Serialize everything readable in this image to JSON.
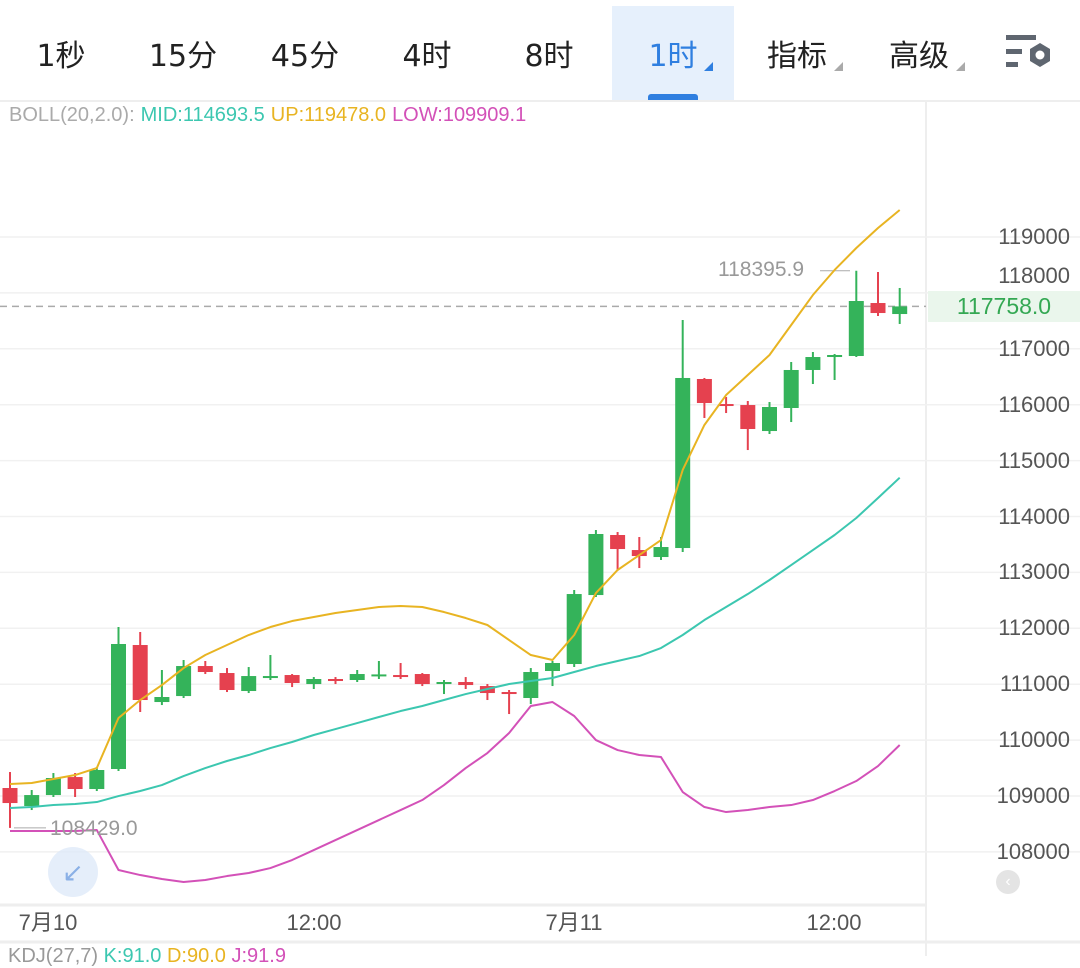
{
  "tabs": [
    {
      "label": "1秒"
    },
    {
      "label": "15分"
    },
    {
      "label": "45分"
    },
    {
      "label": "4时"
    },
    {
      "label": "8时"
    },
    {
      "label": "1时",
      "selected": true,
      "dropdown": true
    },
    {
      "label": "指标",
      "dropdown": true
    },
    {
      "label": "高级",
      "dropdown": true
    }
  ],
  "settings_icon": "chart-settings-icon",
  "legend": {
    "boll": "BOLL(20,2.0):",
    "mid": "MID:114693.5",
    "up": "UP:119478.0",
    "low": "LOW:109909.1"
  },
  "kdj_legend": {
    "name": "KDJ(27,7)",
    "k": "K:91.0",
    "d": "D:90.0",
    "j": "J:91.9"
  },
  "colors": {
    "up_candle": "#34b35a",
    "down_candle": "#e5414f",
    "mid": "#3cc7b0",
    "up": "#e8b422",
    "low": "#d351b8",
    "accent": "#2f7fe0"
  },
  "current_price": "117758.0",
  "high_marker": "118395.9",
  "low_marker": "108429.0",
  "chart_data": {
    "type": "candlestick",
    "y_axis_ticks": [
      "119000",
      "118000",
      "117000",
      "116000",
      "115000",
      "114000",
      "113000",
      "112000",
      "111000",
      "110000",
      "109000",
      "108000"
    ],
    "x_axis_ticks": [
      "7月10",
      "12:00",
      "7月11",
      "12:00"
    ],
    "ylim": [
      107000,
      120000
    ],
    "candles_ohlc": [
      [
        109143,
        109429,
        108429,
        108874
      ],
      [
        108821,
        109107,
        108749,
        109017
      ],
      [
        109017,
        109411,
        108982,
        109322
      ],
      [
        109339,
        109411,
        108982,
        109125
      ],
      [
        109125,
        109518,
        109089,
        109465
      ],
      [
        109483,
        112023,
        109447,
        111719
      ],
      [
        111701,
        111933,
        110502,
        110717
      ],
      [
        110681,
        111254,
        110627,
        110771
      ],
      [
        110788,
        111433,
        110753,
        111325
      ],
      [
        111325,
        111415,
        111182,
        111218
      ],
      [
        111200,
        111289,
        110860,
        110896
      ],
      [
        110878,
        111307,
        110842,
        111146
      ],
      [
        111128,
        111522,
        111075,
        111146
      ],
      [
        111164,
        111182,
        110949,
        111021
      ],
      [
        111003,
        111128,
        110914,
        111093
      ],
      [
        111093,
        111128,
        111003,
        111057
      ],
      [
        111075,
        111254,
        111039,
        111182
      ],
      [
        111164,
        111415,
        111093,
        111175
      ],
      [
        111164,
        111379,
        111093,
        111146
      ],
      [
        111182,
        111200,
        110967,
        111003
      ],
      [
        111003,
        111075,
        110824,
        111039
      ],
      [
        111039,
        111128,
        110914,
        110985
      ],
      [
        110967,
        111003,
        110717,
        110842
      ],
      [
        110860,
        110896,
        110466,
        110824
      ],
      [
        110753,
        111289,
        110645,
        111218
      ],
      [
        111236,
        111415,
        110967,
        111379
      ],
      [
        111361,
        112685,
        111307,
        112613
      ],
      [
        112595,
        113758,
        112560,
        113687
      ],
      [
        113669,
        113722,
        113043,
        113418
      ],
      [
        113400,
        113633,
        113078,
        113293
      ],
      [
        113275,
        113633,
        113222,
        113454
      ],
      [
        113436,
        117515,
        113365,
        116478
      ],
      [
        116460,
        116478,
        115762,
        116030
      ],
      [
        116012,
        116138,
        115851,
        115994
      ],
      [
        115994,
        116066,
        115189,
        115565
      ],
      [
        115529,
        116048,
        115476,
        115959
      ],
      [
        115941,
        116764,
        115690,
        116621
      ],
      [
        116621,
        116943,
        116370,
        116853
      ],
      [
        116853,
        116907,
        116442,
        116889
      ],
      [
        116871,
        118396,
        116853,
        117855
      ],
      [
        117819,
        118374,
        117587,
        117640
      ],
      [
        117622,
        118088,
        117444,
        117758
      ]
    ],
    "series": [
      {
        "name": "MID",
        "values": [
          108785,
          108803,
          108838,
          108856,
          108892,
          108999,
          109089,
          109196,
          109357,
          109500,
          109626,
          109733,
          109858,
          109966,
          110091,
          110198,
          110305,
          110413,
          110520,
          110610,
          110717,
          110824,
          110914,
          111003,
          111057,
          111111,
          111218,
          111325,
          111415,
          111504,
          111647,
          111880,
          112148,
          112381,
          112613,
          112864,
          113132,
          113400,
          113669,
          113973,
          114331,
          114694
        ]
      },
      {
        "name": "UP",
        "values": [
          109214,
          109232,
          109304,
          109375,
          109500,
          110395,
          110717,
          110985,
          111289,
          111522,
          111701,
          111880,
          112023,
          112130,
          112202,
          112273,
          112327,
          112381,
          112399,
          112381,
          112291,
          112184,
          112059,
          111790,
          111522,
          111433,
          111880,
          112631,
          113043,
          113311,
          113579,
          114832,
          115637,
          116173,
          116531,
          116889,
          117426,
          117962,
          118410,
          118803,
          119161,
          119483
        ]
      },
      {
        "name": "LOW",
        "values": [
          108373,
          108373,
          108373,
          108373,
          108391,
          107676,
          107586,
          107515,
          107461,
          107497,
          107568,
          107622,
          107711,
          107855,
          108033,
          108212,
          108391,
          108570,
          108749,
          108928,
          109196,
          109500,
          109769,
          110127,
          110610,
          110681,
          110431,
          110001,
          109822,
          109733,
          109697,
          109071,
          108803,
          108713,
          108749,
          108803,
          108838,
          108928,
          109089,
          109268,
          109536,
          109912
        ]
      }
    ],
    "grid": true
  }
}
